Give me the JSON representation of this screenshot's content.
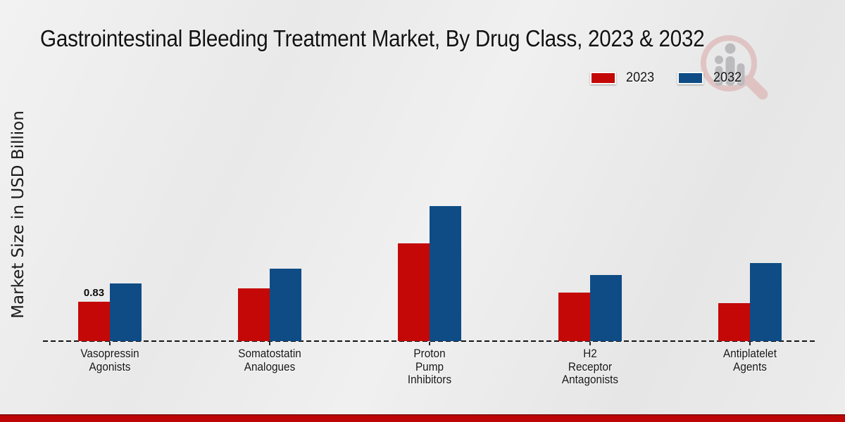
{
  "title": "Gastrointestinal Bleeding Treatment Market, By Drug Class, 2023 & 2032",
  "y_axis_label": "Market Size in USD Billion",
  "legend": [
    {
      "label": "2023",
      "color": "#c40808"
    },
    {
      "label": "2032",
      "color": "#0f4c86"
    }
  ],
  "colors": {
    "bar_2023": "#c40808",
    "bar_2032": "#0f4c86",
    "baseline": "#151515",
    "bottom_strip": "#bd0505",
    "background": "#ececec",
    "watermark_red": "#d9a0a0",
    "watermark_gray": "#8f8f96"
  },
  "chart_data": {
    "type": "bar",
    "title": "Gastrointestinal Bleeding Treatment Market, By Drug Class, 2023 & 2032",
    "ylabel": "Market Size in USD Billion",
    "xlabel": "",
    "categories": [
      "Vasopressin Agonists",
      "Somatostatin Analogues",
      "Proton Pump Inhibitors",
      "H2 Receptor Antagonists",
      "Antiplatelet Agents"
    ],
    "category_lines": [
      [
        "Vasopressin",
        "Agonists"
      ],
      [
        "Somatostatin",
        "Analogues"
      ],
      [
        "Proton",
        "Pump",
        "Inhibitors"
      ],
      [
        "H2",
        "Receptor",
        "Antagonists"
      ],
      [
        "Antiplatelet",
        "Agents"
      ]
    ],
    "series": [
      {
        "name": "2023",
        "color": "#c40808",
        "values": [
          0.83,
          1.12,
          2.08,
          1.03,
          0.81
        ]
      },
      {
        "name": "2032",
        "color": "#0f4c86",
        "values": [
          1.22,
          1.53,
          2.86,
          1.41,
          1.65
        ]
      }
    ],
    "data_labels_2023": [
      "0.83",
      null,
      null,
      null,
      null
    ],
    "ylim": [
      0,
      3.2
    ],
    "grid": false,
    "legend_position": "top-right",
    "baseline_style": "dashed"
  }
}
